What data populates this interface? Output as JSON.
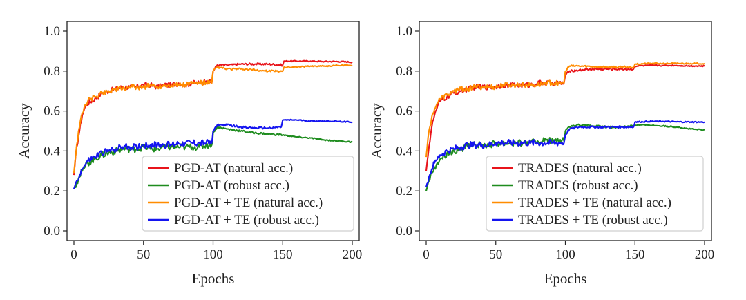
{
  "chart_data": [
    {
      "type": "line",
      "title": "",
      "xlabel": "Epochs",
      "ylabel": "Accuracy",
      "xlim": [
        0,
        200
      ],
      "ylim": [
        0.0,
        1.0
      ],
      "xticks": [
        "0",
        "50",
        "100",
        "150",
        "200"
      ],
      "yticks": [
        "0.0",
        "0.2",
        "0.4",
        "0.6",
        "0.8",
        "1.0"
      ],
      "grid": false,
      "legend_position": "bottom-right",
      "series": [
        {
          "name": "PGD-AT (natural acc.)",
          "color": "#e8141b",
          "x": [
            0,
            2,
            4,
            6,
            8,
            10,
            15,
            20,
            25,
            30,
            35,
            40,
            45,
            50,
            55,
            60,
            65,
            70,
            75,
            80,
            85,
            90,
            95,
            99,
            100,
            103,
            110,
            120,
            130,
            140,
            150,
            151,
            160,
            170,
            180,
            190,
            200
          ],
          "y": [
            0.28,
            0.42,
            0.5,
            0.58,
            0.62,
            0.64,
            0.66,
            0.69,
            0.7,
            0.71,
            0.72,
            0.72,
            0.72,
            0.73,
            0.73,
            0.72,
            0.73,
            0.73,
            0.74,
            0.73,
            0.74,
            0.74,
            0.75,
            0.74,
            0.8,
            0.83,
            0.83,
            0.835,
            0.835,
            0.835,
            0.83,
            0.85,
            0.85,
            0.85,
            0.848,
            0.848,
            0.845
          ]
        },
        {
          "name": "PGD-AT (robust acc.)",
          "color": "#1e8c1e",
          "x": [
            0,
            2,
            4,
            6,
            8,
            10,
            15,
            20,
            25,
            30,
            35,
            40,
            45,
            50,
            55,
            60,
            65,
            70,
            75,
            80,
            85,
            90,
            95,
            99,
            100,
            103,
            110,
            120,
            130,
            140,
            150,
            160,
            170,
            180,
            190,
            200
          ],
          "y": [
            0.21,
            0.24,
            0.27,
            0.3,
            0.32,
            0.34,
            0.36,
            0.38,
            0.39,
            0.4,
            0.41,
            0.41,
            0.41,
            0.42,
            0.41,
            0.41,
            0.42,
            0.42,
            0.42,
            0.42,
            0.42,
            0.42,
            0.43,
            0.43,
            0.49,
            0.52,
            0.51,
            0.5,
            0.49,
            0.485,
            0.48,
            0.47,
            0.465,
            0.455,
            0.45,
            0.445
          ]
        },
        {
          "name": "PGD-AT + TE (natural acc.)",
          "color": "#ff8c00",
          "x": [
            0,
            2,
            4,
            6,
            8,
            10,
            15,
            20,
            25,
            30,
            35,
            40,
            45,
            50,
            55,
            60,
            65,
            70,
            75,
            80,
            85,
            90,
            95,
            99,
            100,
            103,
            110,
            120,
            130,
            140,
            150,
            151,
            160,
            170,
            180,
            190,
            200
          ],
          "y": [
            0.29,
            0.43,
            0.52,
            0.59,
            0.63,
            0.65,
            0.67,
            0.69,
            0.7,
            0.71,
            0.71,
            0.72,
            0.72,
            0.72,
            0.73,
            0.72,
            0.73,
            0.73,
            0.73,
            0.73,
            0.74,
            0.74,
            0.74,
            0.74,
            0.8,
            0.82,
            0.81,
            0.81,
            0.805,
            0.8,
            0.8,
            0.82,
            0.82,
            0.825,
            0.825,
            0.828,
            0.83
          ]
        },
        {
          "name": "PGD-AT + TE (robust acc.)",
          "color": "#1414f0",
          "x": [
            0,
            2,
            4,
            6,
            8,
            10,
            15,
            20,
            25,
            30,
            35,
            40,
            45,
            50,
            55,
            60,
            65,
            70,
            75,
            80,
            85,
            90,
            95,
            99,
            100,
            103,
            110,
            120,
            130,
            140,
            149,
            150,
            160,
            170,
            180,
            190,
            200
          ],
          "y": [
            0.21,
            0.25,
            0.28,
            0.31,
            0.33,
            0.35,
            0.37,
            0.39,
            0.4,
            0.41,
            0.42,
            0.42,
            0.42,
            0.43,
            0.43,
            0.43,
            0.43,
            0.43,
            0.44,
            0.44,
            0.44,
            0.44,
            0.44,
            0.44,
            0.5,
            0.53,
            0.53,
            0.52,
            0.515,
            0.515,
            0.52,
            0.555,
            0.555,
            0.55,
            0.55,
            0.548,
            0.545
          ]
        }
      ]
    },
    {
      "type": "line",
      "title": "",
      "xlabel": "Epochs",
      "ylabel": "Accuracy",
      "xlim": [
        0,
        200
      ],
      "ylim": [
        0.0,
        1.0
      ],
      "xticks": [
        "0",
        "50",
        "100",
        "150",
        "200"
      ],
      "yticks": [
        "0.0",
        "0.2",
        "0.4",
        "0.6",
        "0.8",
        "1.0"
      ],
      "grid": false,
      "legend_position": "bottom-right",
      "series": [
        {
          "name": "TRADES (natural acc.)",
          "color": "#e8141b",
          "x": [
            0,
            2,
            4,
            6,
            8,
            10,
            15,
            20,
            25,
            30,
            35,
            40,
            45,
            50,
            55,
            60,
            65,
            70,
            75,
            80,
            85,
            90,
            95,
            99,
            100,
            103,
            110,
            120,
            130,
            140,
            149,
            150,
            160,
            170,
            180,
            190,
            200
          ],
          "y": [
            0.3,
            0.42,
            0.52,
            0.58,
            0.62,
            0.65,
            0.67,
            0.69,
            0.7,
            0.71,
            0.72,
            0.72,
            0.72,
            0.72,
            0.73,
            0.73,
            0.73,
            0.73,
            0.73,
            0.74,
            0.74,
            0.74,
            0.74,
            0.74,
            0.78,
            0.8,
            0.805,
            0.81,
            0.81,
            0.81,
            0.81,
            0.825,
            0.828,
            0.828,
            0.828,
            0.826,
            0.825
          ]
        },
        {
          "name": "TRADES (robust acc.)",
          "color": "#1e8c1e",
          "x": [
            0,
            2,
            4,
            6,
            8,
            10,
            15,
            20,
            25,
            30,
            35,
            40,
            45,
            50,
            55,
            60,
            65,
            70,
            75,
            80,
            85,
            90,
            95,
            99,
            100,
            103,
            110,
            120,
            130,
            140,
            150,
            160,
            170,
            180,
            190,
            200
          ],
          "y": [
            0.2,
            0.25,
            0.29,
            0.32,
            0.34,
            0.36,
            0.39,
            0.4,
            0.41,
            0.42,
            0.43,
            0.43,
            0.43,
            0.44,
            0.44,
            0.44,
            0.44,
            0.44,
            0.44,
            0.45,
            0.45,
            0.45,
            0.45,
            0.45,
            0.5,
            0.52,
            0.53,
            0.525,
            0.52,
            0.52,
            0.53,
            0.53,
            0.525,
            0.52,
            0.51,
            0.505
          ]
        },
        {
          "name": "TRADES + TE (natural acc.)",
          "color": "#ff8c00",
          "x": [
            0,
            2,
            4,
            6,
            8,
            10,
            15,
            20,
            25,
            30,
            35,
            40,
            45,
            50,
            55,
            60,
            65,
            70,
            75,
            80,
            85,
            90,
            95,
            99,
            100,
            103,
            110,
            120,
            130,
            140,
            149,
            150,
            160,
            170,
            180,
            190,
            200
          ],
          "y": [
            0.37,
            0.5,
            0.57,
            0.61,
            0.64,
            0.66,
            0.68,
            0.7,
            0.71,
            0.71,
            0.72,
            0.72,
            0.72,
            0.72,
            0.73,
            0.73,
            0.73,
            0.73,
            0.73,
            0.73,
            0.74,
            0.74,
            0.74,
            0.74,
            0.8,
            0.825,
            0.825,
            0.822,
            0.82,
            0.82,
            0.82,
            0.835,
            0.838,
            0.838,
            0.838,
            0.838,
            0.838
          ]
        },
        {
          "name": "TRADES + TE (robust acc.)",
          "color": "#1414f0",
          "x": [
            0,
            2,
            4,
            6,
            8,
            10,
            15,
            20,
            25,
            30,
            35,
            40,
            45,
            50,
            55,
            60,
            65,
            70,
            75,
            80,
            85,
            90,
            95,
            99,
            100,
            103,
            110,
            120,
            130,
            140,
            149,
            150,
            160,
            170,
            180,
            190,
            200
          ],
          "y": [
            0.22,
            0.27,
            0.31,
            0.34,
            0.36,
            0.38,
            0.4,
            0.41,
            0.42,
            0.43,
            0.43,
            0.43,
            0.43,
            0.44,
            0.44,
            0.44,
            0.44,
            0.44,
            0.44,
            0.44,
            0.44,
            0.44,
            0.44,
            0.44,
            0.48,
            0.51,
            0.52,
            0.52,
            0.52,
            0.52,
            0.52,
            0.545,
            0.548,
            0.548,
            0.546,
            0.545,
            0.545
          ]
        }
      ]
    }
  ]
}
